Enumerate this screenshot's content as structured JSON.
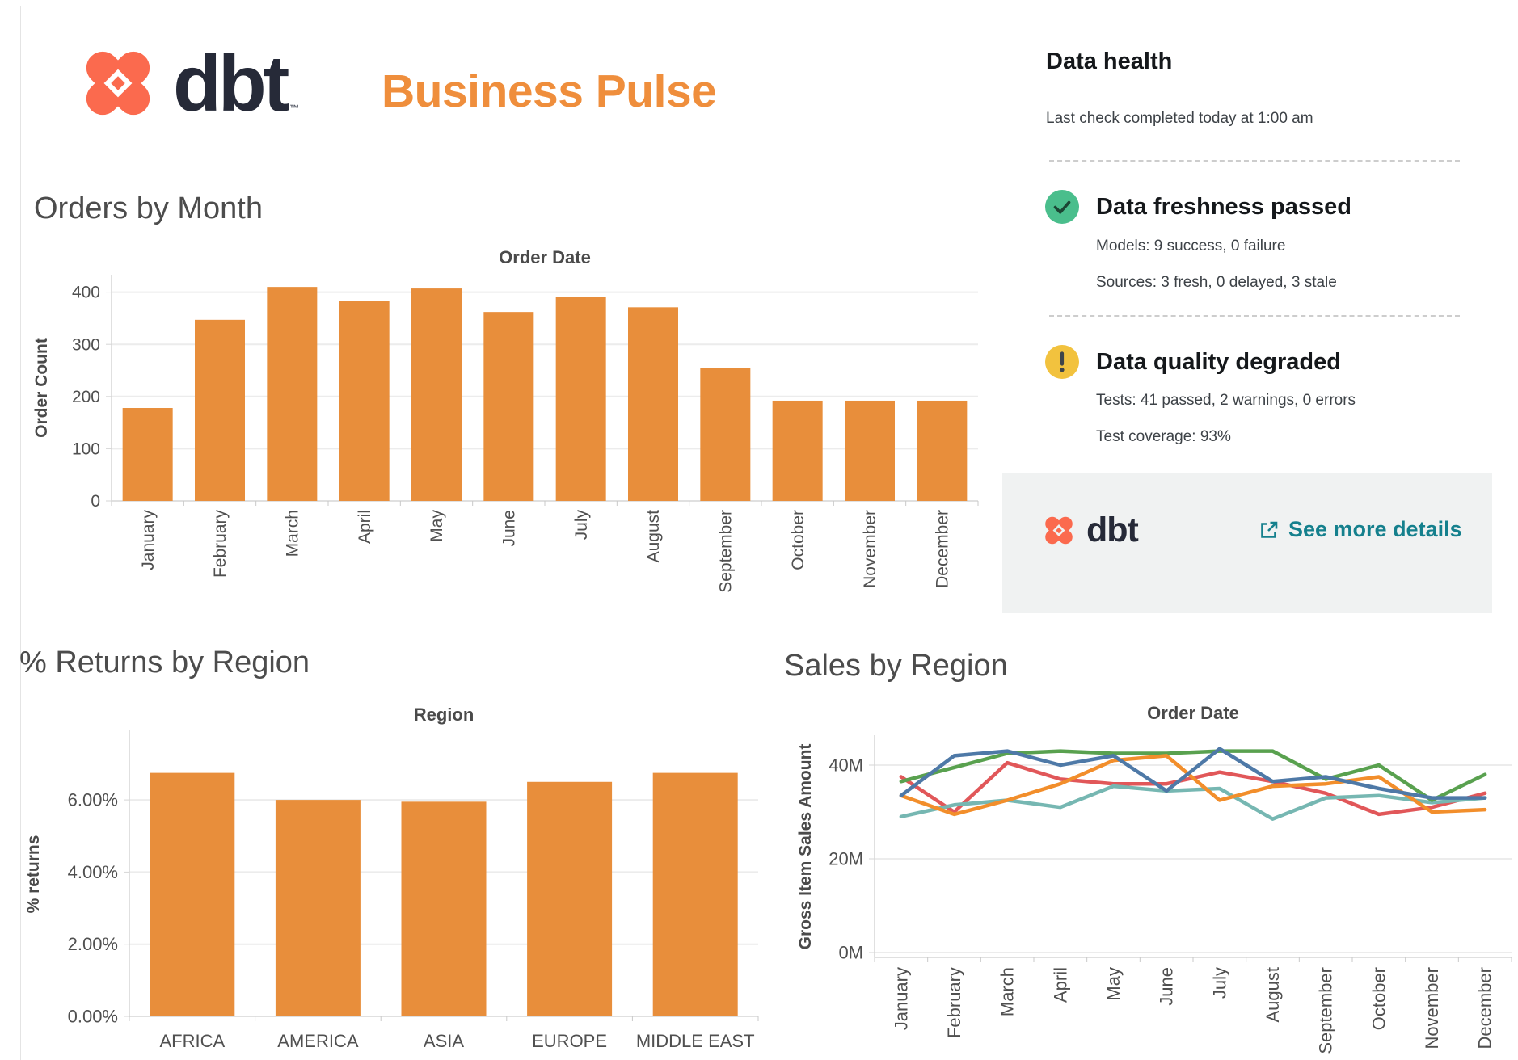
{
  "header": {
    "logo_text": "dbt",
    "logo_tm": "™",
    "title": "Business Pulse"
  },
  "data_health": {
    "title": "Data health",
    "last_check": "Last check completed today at 1:00 am",
    "freshness_title": "Data freshness passed",
    "freshness_models": "Models: 9 success, 0 failure",
    "freshness_sources": "Sources: 3 fresh, 0 delayed, 3 stale",
    "quality_title": "Data quality degraded",
    "quality_tests": "Tests: 41 passed, 2 warnings, 0 errors",
    "quality_coverage": "Test coverage: 93%",
    "footer_logo_text": "dbt",
    "footer_link": "See more details"
  },
  "colors": {
    "dbt_coral": "#FB6A4E",
    "dbt_navy": "#262A38",
    "title_orange": "#EF8E3C",
    "bar_orange": "#E88E3B",
    "link_teal": "#15808D",
    "success_green": "#4ABE8C",
    "warning_yellow": "#F2C23E",
    "gridline": "#ECECEC",
    "axis_line": "#D6D6D6",
    "tick_text": "#505050",
    "axis_title_text": "#4A4A4A"
  },
  "chart_data": [
    {
      "id": "orders_by_month",
      "type": "bar",
      "title": "Orders by Month",
      "header": "Order Date",
      "ylabel": "Order Count",
      "categories": [
        "January",
        "February",
        "March",
        "April",
        "May",
        "June",
        "July",
        "August",
        "September",
        "October",
        "November",
        "December"
      ],
      "values": [
        178,
        347,
        410,
        383,
        407,
        362,
        391,
        371,
        254,
        192,
        192,
        192
      ],
      "y_ticks": [
        {
          "v": 0,
          "label": "0"
        },
        {
          "v": 100,
          "label": "100"
        },
        {
          "v": 200,
          "label": "200"
        },
        {
          "v": 300,
          "label": "300"
        },
        {
          "v": 400,
          "label": "400"
        }
      ],
      "ylim": [
        0,
        433
      ],
      "grid": true,
      "legend": "none"
    },
    {
      "id": "returns_by_region",
      "type": "bar",
      "title": "% Returns by Region",
      "header": "Region",
      "ylabel": "% returns",
      "categories": [
        "AFRICA",
        "AMERICA",
        "ASIA",
        "EUROPE",
        "MIDDLE EAST"
      ],
      "values": [
        6.75,
        6.0,
        5.95,
        6.5,
        6.75
      ],
      "y_ticks": [
        {
          "v": 0,
          "label": "0.00%"
        },
        {
          "v": 2,
          "label": "2.00%"
        },
        {
          "v": 4,
          "label": "4.00%"
        },
        {
          "v": 6,
          "label": "6.00%"
        }
      ],
      "ylim": [
        0,
        7.9
      ],
      "grid": true,
      "legend": "none"
    },
    {
      "id": "sales_by_region",
      "type": "line",
      "title": "Sales by Region",
      "header": "Order Date",
      "ylabel": "Gross Item Sales Amount",
      "categories": [
        "January",
        "February",
        "March",
        "April",
        "May",
        "June",
        "July",
        "August",
        "September",
        "October",
        "November",
        "December"
      ],
      "y_ticks": [
        {
          "v": 0,
          "label": "0M"
        },
        {
          "v": 20,
          "label": "20M"
        },
        {
          "v": 40,
          "label": "40M"
        }
      ],
      "ylim": [
        0,
        47
      ],
      "grid": true,
      "legend": "none",
      "series": [
        {
          "name": "red",
          "color": "#E15759",
          "values": [
            37.5,
            30,
            40.5,
            37,
            36,
            36,
            38.5,
            36.5,
            34,
            29.5,
            31,
            34
          ]
        },
        {
          "name": "teal",
          "color": "#76B7B2",
          "values": [
            29,
            31.5,
            32.5,
            31,
            35.5,
            34.5,
            35,
            28.5,
            33,
            33.5,
            32,
            33
          ]
        },
        {
          "name": "green",
          "color": "#59A14F",
          "values": [
            36.5,
            39.5,
            42.5,
            43,
            42.5,
            42.5,
            43,
            43,
            37,
            40,
            32.5,
            38
          ]
        },
        {
          "name": "orange",
          "color": "#F28E2B",
          "values": [
            33.5,
            29.5,
            32.5,
            36,
            41,
            42,
            32.5,
            35.5,
            36,
            37.5,
            30,
            30.5
          ]
        },
        {
          "name": "blue",
          "color": "#4E79A7",
          "values": [
            33.5,
            42,
            43,
            40,
            42,
            34.5,
            43.5,
            36.5,
            37.5,
            35,
            33,
            33
          ]
        }
      ]
    }
  ]
}
